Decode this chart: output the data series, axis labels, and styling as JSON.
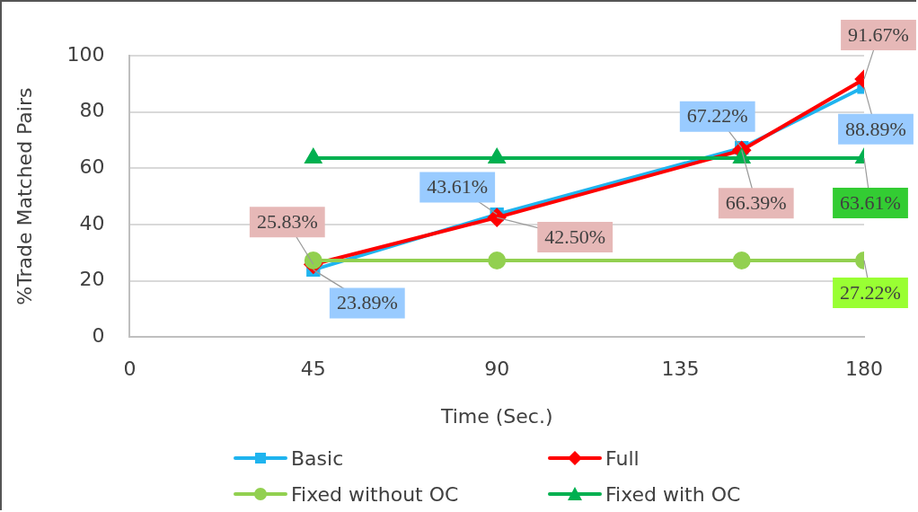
{
  "chart_data": {
    "type": "line",
    "xlabel": "Time (Sec.)",
    "ylabel": "%Trade Matched Pairs",
    "x": [
      45,
      90,
      150,
      180
    ],
    "xlim": [
      0,
      180
    ],
    "xticks": [
      0,
      45,
      90,
      135,
      180
    ],
    "ylim": [
      0,
      100
    ],
    "yticks": [
      0,
      20,
      40,
      60,
      80,
      100
    ],
    "grid": "y",
    "legend": "bottom",
    "series": [
      {
        "name": "Basic",
        "color": "#1fb4ef",
        "marker": "square",
        "values": [
          23.89,
          43.61,
          67.22,
          88.89
        ],
        "value_labels": [
          "23.89%",
          "43.61%",
          "67.22%",
          "88.89%"
        ]
      },
      {
        "name": "Full",
        "color": "#ff0000",
        "marker": "diamond",
        "values": [
          25.83,
          42.5,
          66.39,
          91.67
        ],
        "value_labels": [
          "25.83%",
          "42.50%",
          "66.39%",
          "91.67%"
        ]
      },
      {
        "name": "Fixed without OC",
        "color": "#92d050",
        "marker": "circle",
        "values": [
          27.22,
          27.22,
          27.22,
          27.22
        ],
        "value_labels": [
          null,
          null,
          null,
          "27.22%"
        ]
      },
      {
        "name": "Fixed with OC",
        "color": "#00b050",
        "marker": "triangle",
        "values": [
          63.61,
          63.61,
          63.61,
          63.61
        ],
        "value_labels": [
          null,
          null,
          null,
          "63.61%"
        ]
      }
    ]
  }
}
